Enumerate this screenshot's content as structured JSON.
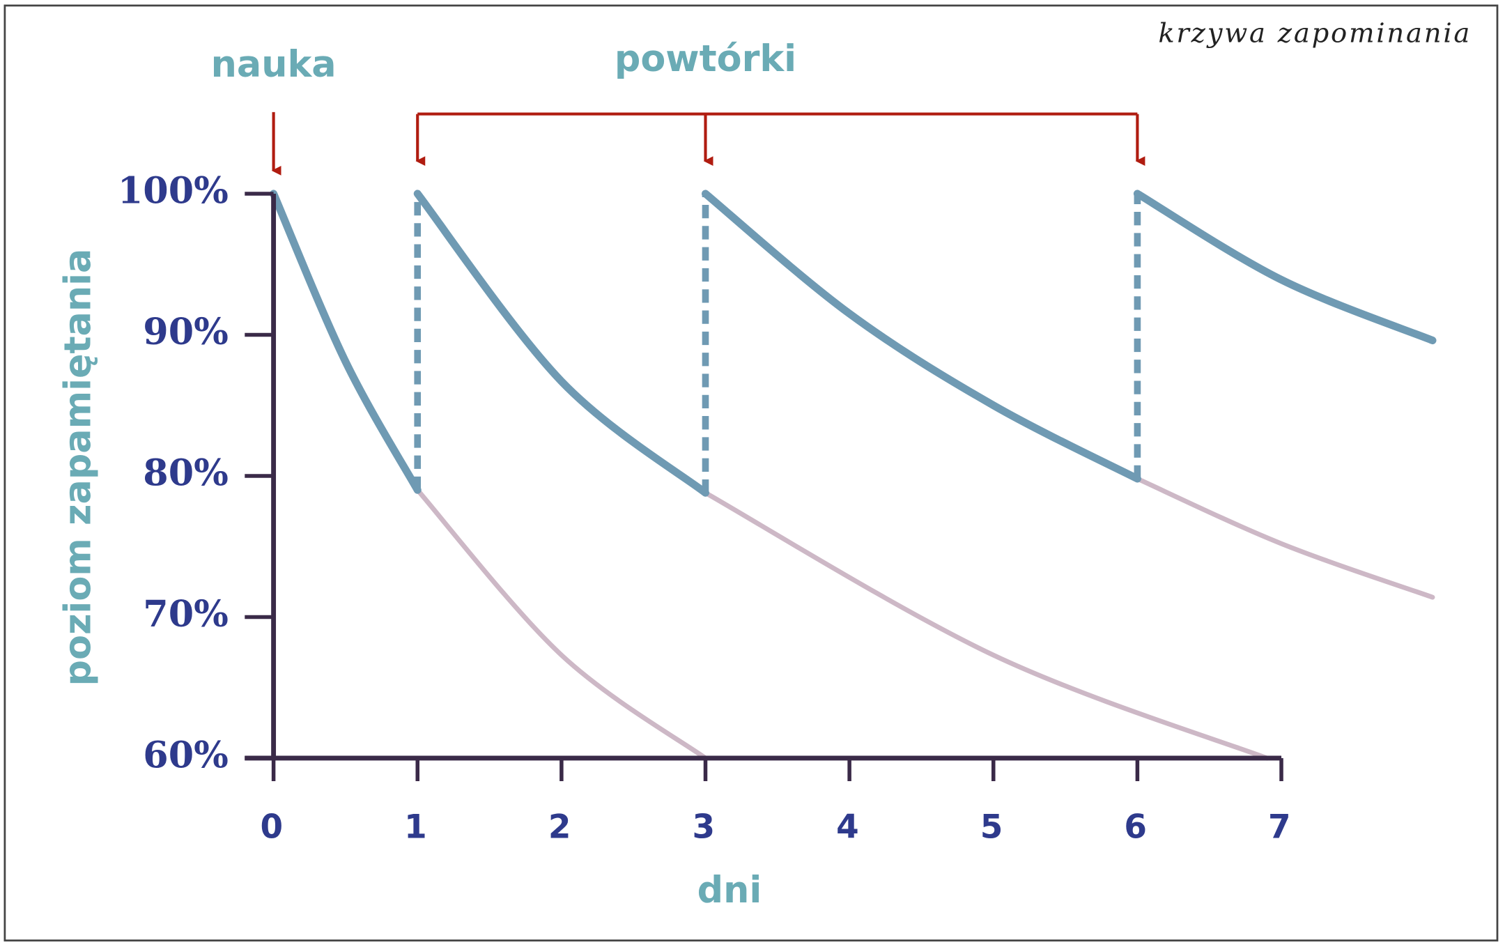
{
  "chart_data": {
    "type": "line",
    "title": "krzywa zapominania",
    "x_label": "dni",
    "y_label": "poziom zapamiętania",
    "xlim": [
      0,
      7
    ],
    "xticks": [
      0,
      1,
      2,
      3,
      4,
      5,
      6,
      7
    ],
    "ylim": [
      60,
      100
    ],
    "yticks": [
      {
        "value": 60,
        "label": "60%"
      },
      {
        "value": 70,
        "label": "70%"
      },
      {
        "value": 80,
        "label": "80%"
      },
      {
        "value": 90,
        "label": "90%"
      },
      {
        "value": 100,
        "label": "100%"
      }
    ],
    "annotations": [
      {
        "text": "nauka",
        "x": [
          0
        ]
      },
      {
        "text": "powtórki",
        "x": [
          1,
          3,
          6
        ]
      }
    ],
    "series": [
      {
        "color": "#6f9ab3",
        "x": [
          0,
          0.5,
          1
        ],
        "values": [
          100,
          88.1,
          79.0
        ]
      },
      {
        "color": "#cdb8c6",
        "x": [
          1,
          2,
          3
        ],
        "values": [
          79.0,
          67.3,
          60
        ]
      },
      {
        "color": "#6f9ab3",
        "x": [
          1,
          2,
          3
        ],
        "values": [
          100,
          86.7,
          78.8
        ]
      },
      {
        "color": "#cdb8c6",
        "x": [
          3,
          5,
          6.9
        ],
        "values": [
          78.8,
          67.3,
          60
        ]
      },
      {
        "color": "#6f9ab3",
        "x": [
          3,
          4,
          5,
          6
        ],
        "values": [
          100,
          91.5,
          85,
          79.8
        ]
      },
      {
        "color": "#cdb8c6",
        "x": [
          6,
          7,
          8.05
        ],
        "values": [
          79.8,
          75.2,
          71.4
        ]
      },
      {
        "color": "#6f9ab3",
        "x": [
          6,
          7,
          8.05
        ],
        "values": [
          100,
          93.9,
          89.6
        ]
      }
    ]
  }
}
